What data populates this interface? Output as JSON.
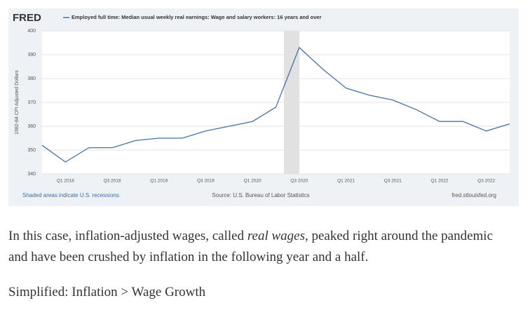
{
  "chart_data": {
    "type": "line",
    "logo": "FRED",
    "y_label": "1982-84 CPI Adjusted Dollars",
    "note": "Shaded areas indicate U.S. recessions.",
    "source": "Source: U.S. Bureau of Labor Statistics",
    "site": "fred.stlouisfed.org",
    "categories": [
      null,
      "Q1 2018",
      null,
      "Q3 2018",
      null,
      "Q1 2019",
      null,
      "Q3 2019",
      null,
      "Q1 2020",
      null,
      "Q3 2020",
      null,
      "Q1 2021",
      null,
      "Q3 2021",
      null,
      "Q1 2022",
      null,
      "Q3 2022",
      null
    ],
    "series": [
      {
        "name": "Employed full time: Median usual weekly real earnings: Wage and salary workers: 16 years and over",
        "color": "#4572a7",
        "values": [
          352,
          345,
          351,
          351,
          354,
          355,
          355,
          358,
          360,
          362,
          368,
          393,
          384,
          376,
          373,
          371,
          367,
          362,
          362,
          358,
          361
        ]
      }
    ],
    "ylim": [
      340,
      400
    ],
    "yticks": [
      340,
      350,
      360,
      370,
      380,
      390,
      400
    ],
    "grid": true
  },
  "article": {
    "paragraph1": [
      "In this case, inflation-adjusted wages, called ",
      "real wages",
      ", peaked right around the pandemic and have been crushed by inflation in the following year and a half."
    ],
    "paragraph2": "Simplified: Inflation > Wage Growth"
  }
}
